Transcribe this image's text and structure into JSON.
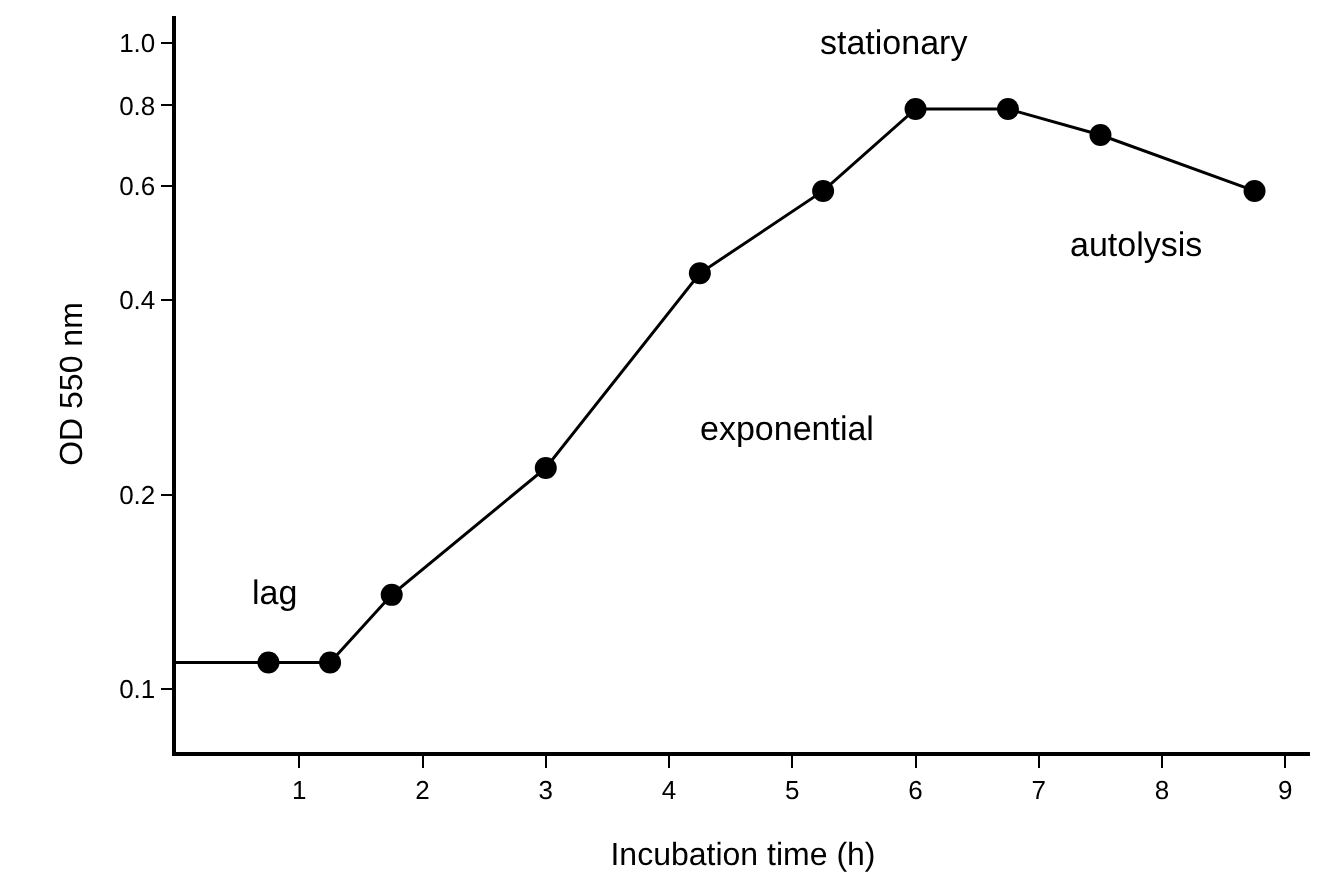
{
  "chart_data": {
    "type": "line",
    "xlabel": "Incubation time (h)",
    "ylabel": "OD 550 nm",
    "series": [
      {
        "type": "line",
        "color": "#000000",
        "marker": "none",
        "x": [
          0,
          0.75,
          1.25,
          1.75,
          3,
          4.25,
          5.25,
          6,
          6.75,
          7.5,
          8.75
        ],
        "values": [
          0.11,
          0.11,
          0.11,
          0.14,
          0.22,
          0.44,
          0.59,
          0.79,
          0.79,
          0.72,
          0.59
        ]
      },
      {
        "type": "scatter",
        "color": "#000000",
        "marker": "circle",
        "x": [
          0.75,
          1.25,
          1.75,
          3,
          4.25,
          5.25,
          6,
          6.75,
          7.5,
          8.75
        ],
        "values": [
          0.11,
          0.11,
          0.14,
          0.22,
          0.44,
          0.59,
          0.79,
          0.79,
          0.72,
          0.59
        ]
      }
    ],
    "log": "y",
    "xlim": [
      0,
      9.2
    ],
    "xticks": [
      1,
      2,
      3,
      4,
      5,
      6,
      7,
      8,
      9
    ],
    "ylim": [
      0.08,
      1.1
    ],
    "yticks": [
      0.1,
      0.2,
      0.4,
      0.6,
      0.8,
      {
        "value": 1,
        "label": "1.0"
      }
    ],
    "grid": false,
    "annotations": [
      "lag",
      "exponential",
      "stationary",
      "autolysis"
    ]
  }
}
